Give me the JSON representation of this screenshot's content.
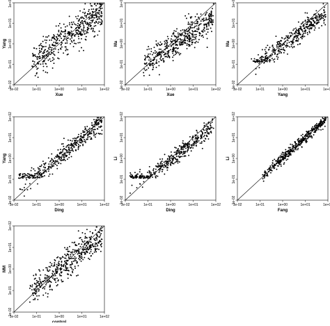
{
  "chart_data": [
    {
      "type": "scatter",
      "xlabel": "Xue",
      "ylabel": "Yang",
      "xscale": "log",
      "yscale": "log",
      "xlim": [
        0.01,
        100
      ],
      "ylim": [
        0.01,
        100
      ],
      "reference_line": "y = x",
      "x_ticks": [
        "1e-02",
        "1e-01",
        "1e+00",
        "1e+01",
        "1e+02"
      ],
      "y_ticks": [
        "1e-02",
        "1e-01",
        "1e+00",
        "1e+01",
        "1e+02"
      ],
      "pattern": {
        "n_points": 480,
        "slope": 0.78,
        "intercept": 0.05,
        "noise": 0.42,
        "floor": null,
        "xmin": -1.2,
        "xmax": 1.9
      }
    },
    {
      "type": "scatter",
      "xlabel": "Xue",
      "ylabel": "Ma",
      "xscale": "log",
      "yscale": "log",
      "xlim": [
        0.01,
        100
      ],
      "ylim": [
        0.01,
        100
      ],
      "reference_line": "y = x",
      "x_ticks": [
        "1e-02",
        "1e-01",
        "1e+00",
        "1e+01",
        "1e+02"
      ],
      "y_ticks": [
        "1e-02",
        "1e-01",
        "1e+00",
        "1e+01",
        "1e+02"
      ],
      "pattern": {
        "n_points": 480,
        "slope": 0.72,
        "intercept": -0.15,
        "noise": 0.33,
        "floor": null,
        "xmin": -1.2,
        "xmax": 1.9
      }
    },
    {
      "type": "scatter",
      "xlabel": "Yang",
      "ylabel": "Ma",
      "xscale": "log",
      "yscale": "log",
      "xlim": [
        0.01,
        100
      ],
      "ylim": [
        0.01,
        100
      ],
      "reference_line": "y = x",
      "x_ticks": [
        "1e-02",
        "1e-01",
        "1e+00",
        "1e+01",
        "1e+02"
      ],
      "y_ticks": [
        "1e-02",
        "1e-01",
        "1e+00",
        "1e+01",
        "1e+02"
      ],
      "pattern": {
        "n_points": 420,
        "slope": 0.85,
        "intercept": -0.1,
        "noise": 0.24,
        "floor": -0.9,
        "xmin": -1.4,
        "xmax": 1.9
      }
    },
    {
      "type": "scatter",
      "xlabel": "Ding",
      "ylabel": "Yang",
      "xscale": "log",
      "yscale": "log",
      "xlim": [
        0.01,
        100
      ],
      "ylim": [
        0.01,
        100
      ],
      "reference_line": "y = x",
      "x_ticks": [
        "1e-02",
        "1e-01",
        "1e+00",
        "1e+01",
        "1e+02"
      ],
      "y_ticks": [
        "1e-02",
        "1e-01",
        "1e+00",
        "1e+01",
        "1e+02"
      ],
      "pattern": {
        "n_points": 430,
        "slope": 0.9,
        "intercept": 0.05,
        "noise": 0.22,
        "floor": -0.95,
        "xmin": -1.8,
        "xmax": 1.9
      }
    },
    {
      "type": "scatter",
      "xlabel": "Ding",
      "ylabel": "Li",
      "xscale": "log",
      "yscale": "log",
      "xlim": [
        0.01,
        100
      ],
      "ylim": [
        0.01,
        100
      ],
      "reference_line": "y = x",
      "x_ticks": [
        "1e-02",
        "1e-01",
        "1e+00",
        "1e+01",
        "1e+02"
      ],
      "y_ticks": [
        "1e-02",
        "1e-01",
        "1e+00",
        "1e+01",
        "1e+02"
      ],
      "pattern": {
        "n_points": 430,
        "slope": 0.85,
        "intercept": -0.05,
        "noise": 0.2,
        "floor": -0.95,
        "xmin": -1.8,
        "xmax": 1.9
      }
    },
    {
      "type": "scatter",
      "xlabel": "Fang",
      "ylabel": "Li",
      "xscale": "log",
      "yscale": "log",
      "xlim": [
        0.01,
        100
      ],
      "ylim": [
        0.01,
        100
      ],
      "reference_line": "y = x",
      "x_ticks": [
        "1e-02",
        "1e-01",
        "1e+00",
        "1e+01",
        "1e+02"
      ],
      "y_ticks": [
        "1e-02",
        "1e-01",
        "1e+00",
        "1e+01",
        "1e+02"
      ],
      "pattern": {
        "n_points": 420,
        "slope": 0.98,
        "intercept": 0.02,
        "noise": 0.12,
        "floor": null,
        "xmin": -0.9,
        "xmax": 1.9
      }
    },
    {
      "type": "scatter",
      "xlabel": "control",
      "ylabel": "MM",
      "xscale": "log",
      "yscale": "log",
      "xlim": [
        0.01,
        100
      ],
      "ylim": [
        0.01,
        100
      ],
      "reference_line": "y = x",
      "x_ticks": [
        "1e-02",
        "1e-01",
        "1e+00",
        "1e+01",
        "1e+02"
      ],
      "y_ticks": [
        "1e-02",
        "1e-01",
        "1e+00",
        "1e+01",
        "1e+02"
      ],
      "pattern": {
        "n_points": 470,
        "slope": 0.8,
        "intercept": 0.0,
        "noise": 0.35,
        "floor": null,
        "xmin": -1.3,
        "xmax": 1.9
      }
    }
  ]
}
